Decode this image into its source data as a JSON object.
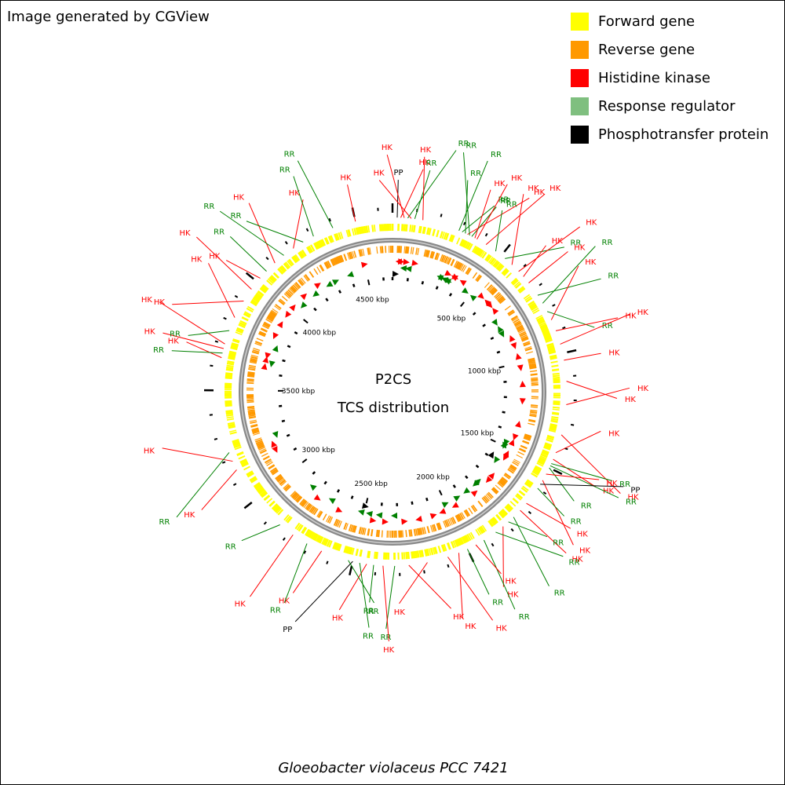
{
  "credit": "Image generated by CGView",
  "center": {
    "title": "P2CS",
    "subtitle": "TCS distribution"
  },
  "organism": "Gloeobacter violaceus PCC 7421",
  "legend": [
    {
      "label": "Forward gene",
      "color": "#ffff00"
    },
    {
      "label": "Reverse gene",
      "color": "#ff9900"
    },
    {
      "label": "Histidine kinase",
      "color": "#ff0000"
    },
    {
      "label": "Response regulator",
      "color": "#7fbf7f"
    },
    {
      "label": "Phosphotransfer protein",
      "color": "#000000"
    }
  ],
  "colors": {
    "HK": "#ff0000",
    "RR": "#008000",
    "PP": "#000000",
    "forward": "#ffff00",
    "reverse": "#ff9900",
    "backbone": "#777777"
  },
  "map": {
    "genome_length_kbp": 4659,
    "scale_labels": [
      "500 kbp",
      "1000 kbp",
      "1500 kbp",
      "2000 kbp",
      "2500 kbp",
      "3000 kbp",
      "3500 kbp",
      "4000 kbp",
      "4500 kbp"
    ],
    "features": [
      {
        "kbp": 20,
        "type": "PP"
      },
      {
        "kbp": 35,
        "type": "HK"
      },
      {
        "kbp": 50,
        "type": "HK"
      },
      {
        "kbp": 65,
        "type": "RR"
      },
      {
        "kbp": 80,
        "type": "HK"
      },
      {
        "kbp": 95,
        "type": "RR"
      },
      {
        "kbp": 130,
        "type": "HK"
      },
      {
        "kbp": 290,
        "type": "RR"
      },
      {
        "kbp": 305,
        "type": "RR"
      },
      {
        "kbp": 320,
        "type": "RR"
      },
      {
        "kbp": 330,
        "type": "HK"
      },
      {
        "kbp": 340,
        "type": "RR"
      },
      {
        "kbp": 350,
        "type": "RR"
      },
      {
        "kbp": 365,
        "type": "HK"
      },
      {
        "kbp": 375,
        "type": "HK"
      },
      {
        "kbp": 420,
        "type": "HK"
      },
      {
        "kbp": 470,
        "type": "RR"
      },
      {
        "kbp": 520,
        "type": "RR"
      },
      {
        "kbp": 560,
        "type": "HK"
      },
      {
        "kbp": 600,
        "type": "HK"
      },
      {
        "kbp": 630,
        "type": "HK"
      },
      {
        "kbp": 665,
        "type": "HK"
      },
      {
        "kbp": 730,
        "type": "RR"
      },
      {
        "kbp": 770,
        "type": "RR"
      },
      {
        "kbp": 810,
        "type": "RR"
      },
      {
        "kbp": 850,
        "type": "HK"
      },
      {
        "kbp": 900,
        "type": "HK"
      },
      {
        "kbp": 960,
        "type": "HK"
      },
      {
        "kbp": 1030,
        "type": "HK"
      },
      {
        "kbp": 1120,
        "type": "HK"
      },
      {
        "kbp": 1220,
        "type": "HK"
      },
      {
        "kbp": 1350,
        "type": "HK"
      },
      {
        "kbp": 1430,
        "type": "HK"
      },
      {
        "kbp": 1460,
        "type": "HK"
      },
      {
        "kbp": 1480,
        "type": "RR"
      },
      {
        "kbp": 1490,
        "type": "RR"
      },
      {
        "kbp": 1500,
        "type": "RR"
      },
      {
        "kbp": 1530,
        "type": "HK"
      },
      {
        "kbp": 1560,
        "type": "HK"
      },
      {
        "kbp": 1580,
        "type": "PP"
      },
      {
        "kbp": 1600,
        "type": "RR"
      },
      {
        "kbp": 1680,
        "type": "HK"
      },
      {
        "kbp": 1720,
        "type": "HK"
      },
      {
        "kbp": 1760,
        "type": "RR"
      },
      {
        "kbp": 1790,
        "type": "RR"
      },
      {
        "kbp": 1820,
        "type": "HK"
      },
      {
        "kbp": 1860,
        "type": "RR"
      },
      {
        "kbp": 1920,
        "type": "RR"
      },
      {
        "kbp": 1960,
        "type": "HK"
      },
      {
        "kbp": 2000,
        "type": "RR"
      },
      {
        "kbp": 2040,
        "type": "HK"
      },
      {
        "kbp": 2090,
        "type": "HK"
      },
      {
        "kbp": 2180,
        "type": "HK"
      },
      {
        "kbp": 2260,
        "type": "HK"
      },
      {
        "kbp": 2320,
        "type": "RR"
      },
      {
        "kbp": 2370,
        "type": "HK"
      },
      {
        "kbp": 2410,
        "type": "RR"
      },
      {
        "kbp": 2440,
        "type": "HK"
      },
      {
        "kbp": 2470,
        "type": "RR"
      },
      {
        "kbp": 2500,
        "type": "PP"
      },
      {
        "kbp": 2520,
        "type": "RR"
      },
      {
        "kbp": 2640,
        "type": "HK"
      },
      {
        "kbp": 2710,
        "type": "RR"
      },
      {
        "kbp": 2780,
        "type": "HK"
      },
      {
        "kbp": 2850,
        "type": "RR"
      },
      {
        "kbp": 3150,
        "type": "HK"
      },
      {
        "kbp": 3190,
        "type": "HK"
      },
      {
        "kbp": 3230,
        "type": "RR"
      },
      {
        "kbp": 3640,
        "type": "HK"
      },
      {
        "kbp": 3660,
        "type": "RR"
      },
      {
        "kbp": 3680,
        "type": "HK"
      },
      {
        "kbp": 3700,
        "type": "HK"
      },
      {
        "kbp": 3760,
        "type": "RR"
      },
      {
        "kbp": 3820,
        "type": "HK"
      },
      {
        "kbp": 3900,
        "type": "HK"
      },
      {
        "kbp": 3960,
        "type": "HK"
      },
      {
        "kbp": 4020,
        "type": "HK"
      },
      {
        "kbp": 4060,
        "type": "RR"
      },
      {
        "kbp": 4110,
        "type": "HK"
      },
      {
        "kbp": 4160,
        "type": "RR"
      },
      {
        "kbp": 4210,
        "type": "HK"
      },
      {
        "kbp": 4260,
        "type": "RR"
      },
      {
        "kbp": 4310,
        "type": "RR"
      },
      {
        "kbp": 4400,
        "type": "RR"
      },
      {
        "kbp": 4500,
        "type": "HK"
      }
    ]
  }
}
